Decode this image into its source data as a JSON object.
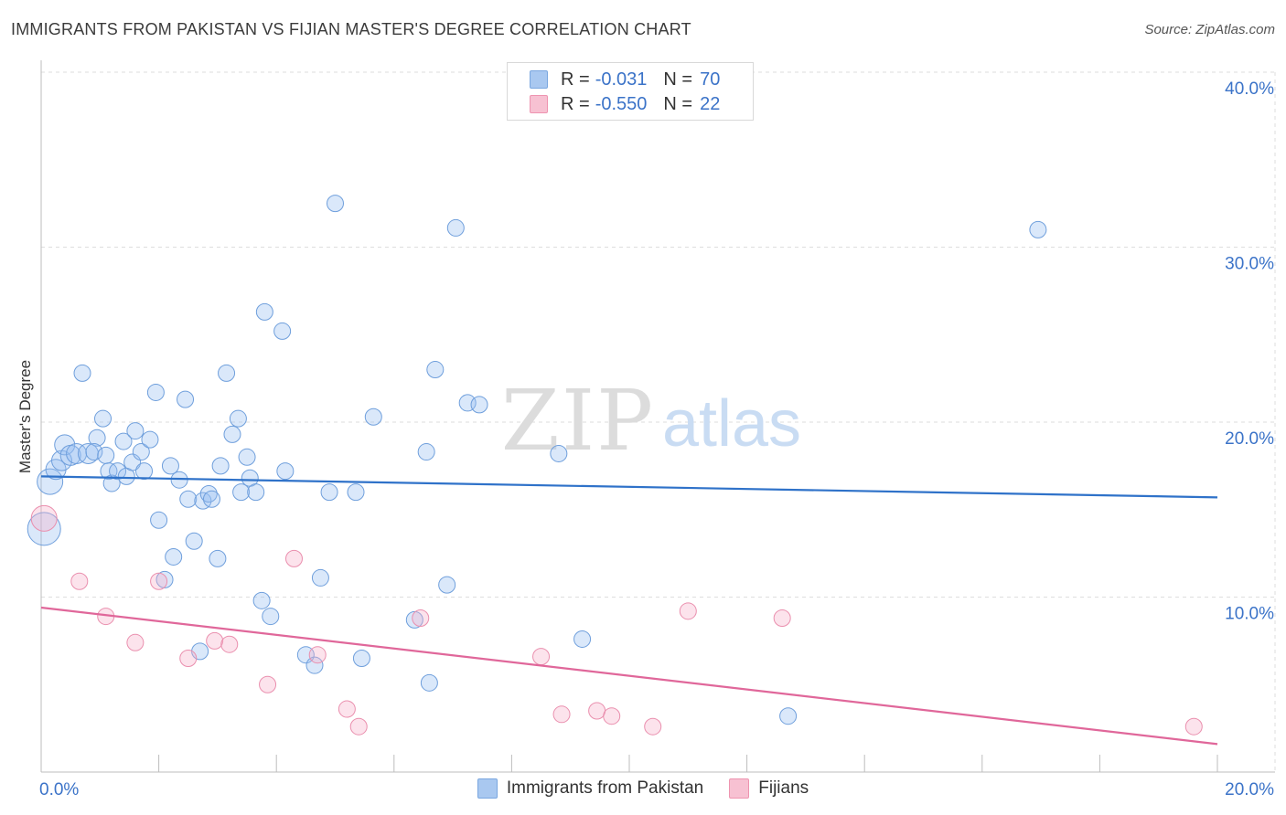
{
  "header": {
    "title": "IMMIGRANTS FROM PAKISTAN VS FIJIAN MASTER'S DEGREE CORRELATION CHART",
    "source": "Source: ZipAtlas.com"
  },
  "watermark": {
    "zip": "ZIP",
    "atlas": "atlas"
  },
  "legend": {
    "rows": [
      {
        "r_label": "R =",
        "r_value": "-0.031",
        "n_label": "N =",
        "n_value": "70",
        "color": "#a9c8f0",
        "border": "#7aa7e0"
      },
      {
        "r_label": "R =",
        "r_value": "-0.550",
        "n_label": "N =",
        "n_value": "22",
        "color": "#f7c1d2",
        "border": "#ee94b0"
      }
    ]
  },
  "bottom_legend": [
    {
      "label": "Immigrants from Pakistan",
      "color": "#a9c8f0",
      "border": "#7aa7e0"
    },
    {
      "label": "Fijians",
      "color": "#f7c1d2",
      "border": "#ee94b0"
    }
  ],
  "colors": {
    "blue_fill": "rgba(150,190,240,0.35)",
    "blue_stroke": "#6f9fdc",
    "blue_line": "#2f72c9",
    "pink_fill": "rgba(245,175,200,0.35)",
    "pink_stroke": "#ea8fae",
    "pink_line": "#e0679a",
    "axis_label": "#3b73c8",
    "grid": "#dedede"
  },
  "chart_data": {
    "type": "scatter",
    "title": "IMMIGRANTS FROM PAKISTAN VS FIJIAN MASTER'S DEGREE CORRELATION CHART",
    "xlabel": "",
    "ylabel": "Master's Degree",
    "xlim": [
      0,
      20
    ],
    "ylim": [
      0,
      40
    ],
    "x_tick_labels": [
      {
        "value": 0,
        "label": "0.0%"
      },
      {
        "value": 20,
        "label": "20.0%"
      }
    ],
    "y_tick_labels": [
      {
        "value": 10,
        "label": "10.0%"
      },
      {
        "value": 20,
        "label": "20.0%"
      },
      {
        "value": 30,
        "label": "30.0%"
      },
      {
        "value": 40,
        "label": "40.0%"
      }
    ],
    "series": [
      {
        "name": "Immigrants from Pakistan",
        "trend": {
          "x0": 0,
          "y0": 16.9,
          "x1": 20,
          "y1": 15.7
        },
        "points": [
          [
            0.05,
            13.9,
            "xl"
          ],
          [
            0.15,
            16.6,
            "lg"
          ],
          [
            0.25,
            17.3,
            "md"
          ],
          [
            0.35,
            17.8,
            "md"
          ],
          [
            0.4,
            18.7,
            "md"
          ],
          [
            0.5,
            18.1,
            "md"
          ],
          [
            0.6,
            18.2,
            "md"
          ],
          [
            0.7,
            22.8,
            "sm"
          ],
          [
            0.8,
            18.2,
            "md"
          ],
          [
            0.95,
            19.1,
            "sm"
          ],
          [
            0.9,
            18.3,
            "sm"
          ],
          [
            1.05,
            20.2,
            "sm"
          ],
          [
            1.1,
            18.1,
            "sm"
          ],
          [
            1.15,
            17.2,
            "sm"
          ],
          [
            1.2,
            16.5,
            "sm"
          ],
          [
            1.3,
            17.2,
            "sm"
          ],
          [
            1.4,
            18.9,
            "sm"
          ],
          [
            1.45,
            16.9,
            "sm"
          ],
          [
            1.55,
            17.7,
            "sm"
          ],
          [
            1.6,
            19.5,
            "sm"
          ],
          [
            1.7,
            18.3,
            "sm"
          ],
          [
            1.75,
            17.2,
            "sm"
          ],
          [
            1.85,
            19.0,
            "sm"
          ],
          [
            1.95,
            21.7,
            "sm"
          ],
          [
            2.0,
            14.4,
            "sm"
          ],
          [
            2.1,
            11.0,
            "sm"
          ],
          [
            2.2,
            17.5,
            "sm"
          ],
          [
            2.25,
            12.3,
            "sm"
          ],
          [
            2.35,
            16.7,
            "sm"
          ],
          [
            2.45,
            21.3,
            "sm"
          ],
          [
            2.5,
            15.6,
            "sm"
          ],
          [
            2.6,
            13.2,
            "sm"
          ],
          [
            2.7,
            6.9,
            "sm"
          ],
          [
            2.75,
            15.5,
            "sm"
          ],
          [
            2.85,
            15.9,
            "sm"
          ],
          [
            2.9,
            15.6,
            "sm"
          ],
          [
            3.0,
            12.2,
            "sm"
          ],
          [
            3.05,
            17.5,
            "sm"
          ],
          [
            3.15,
            22.8,
            "sm"
          ],
          [
            3.25,
            19.3,
            "sm"
          ],
          [
            3.35,
            20.2,
            "sm"
          ],
          [
            3.4,
            16.0,
            "sm"
          ],
          [
            3.5,
            18.0,
            "sm"
          ],
          [
            3.55,
            16.8,
            "sm"
          ],
          [
            3.65,
            16.0,
            "sm"
          ],
          [
            3.75,
            9.8,
            "sm"
          ],
          [
            3.8,
            26.3,
            "sm"
          ],
          [
            3.9,
            8.9,
            "sm"
          ],
          [
            4.1,
            25.2,
            "sm"
          ],
          [
            4.15,
            17.2,
            "sm"
          ],
          [
            4.5,
            6.7,
            "sm"
          ],
          [
            4.65,
            6.1,
            "sm"
          ],
          [
            4.75,
            11.1,
            "sm"
          ],
          [
            4.9,
            16.0,
            "sm"
          ],
          [
            5.0,
            32.5,
            "sm"
          ],
          [
            5.35,
            16.0,
            "sm"
          ],
          [
            5.45,
            6.5,
            "sm"
          ],
          [
            5.65,
            20.3,
            "sm"
          ],
          [
            6.35,
            8.7,
            "sm"
          ],
          [
            6.55,
            18.3,
            "sm"
          ],
          [
            6.7,
            23.0,
            "sm"
          ],
          [
            6.9,
            10.7,
            "sm"
          ],
          [
            7.05,
            31.1,
            "sm"
          ],
          [
            7.25,
            21.1,
            "sm"
          ],
          [
            7.45,
            21.0,
            "sm"
          ],
          [
            6.6,
            5.1,
            "sm"
          ],
          [
            8.8,
            18.2,
            "sm"
          ],
          [
            9.2,
            7.6,
            "sm"
          ],
          [
            12.7,
            3.2,
            "sm"
          ],
          [
            16.95,
            31.0,
            "sm"
          ]
        ]
      },
      {
        "name": "Fijians",
        "trend": {
          "x0": 0,
          "y0": 9.4,
          "x1": 20,
          "y1": 1.6
        },
        "points": [
          [
            0.05,
            14.5,
            "lg"
          ],
          [
            0.65,
            10.9,
            "sm"
          ],
          [
            1.1,
            8.9,
            "sm"
          ],
          [
            1.6,
            7.4,
            "sm"
          ],
          [
            2.0,
            10.9,
            "sm"
          ],
          [
            2.5,
            6.5,
            "sm"
          ],
          [
            2.95,
            7.5,
            "sm"
          ],
          [
            3.2,
            7.3,
            "sm"
          ],
          [
            3.85,
            5.0,
            "sm"
          ],
          [
            4.3,
            12.2,
            "sm"
          ],
          [
            4.7,
            6.7,
            "sm"
          ],
          [
            5.2,
            3.6,
            "sm"
          ],
          [
            5.4,
            2.6,
            "sm"
          ],
          [
            6.45,
            8.8,
            "sm"
          ],
          [
            8.5,
            6.6,
            "sm"
          ],
          [
            8.85,
            3.3,
            "sm"
          ],
          [
            9.45,
            3.5,
            "sm"
          ],
          [
            9.7,
            3.2,
            "sm"
          ],
          [
            10.4,
            2.6,
            "sm"
          ],
          [
            11.0,
            9.2,
            "sm"
          ],
          [
            12.6,
            8.8,
            "sm"
          ],
          [
            19.6,
            2.6,
            "sm"
          ]
        ]
      }
    ]
  }
}
